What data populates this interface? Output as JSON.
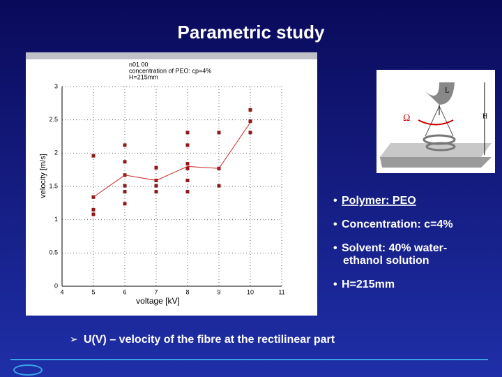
{
  "slide": {
    "title": "Parametric study",
    "bullets": [
      [
        "Polymer: PEO"
      ],
      [
        "Concentration: c=4%"
      ],
      [
        "Solvent: 40% water-",
        "ethanol solution"
      ],
      [
        "H=215mm"
      ]
    ],
    "footer": "U(V) – velocity of the fibre at the rectilinear part",
    "diagram": {
      "length_label": "L",
      "height_label": "H",
      "rotation_label": "Ω"
    }
  },
  "chart_data": {
    "type": "scatter",
    "annotation": [
      "n01 00",
      "concentration of PEO: cp=4%",
      "H=215mm"
    ],
    "x_label": "voltage [kV]",
    "y_label": "velocity [m/s]",
    "xlim": [
      4,
      11
    ],
    "xticks": [
      4,
      5,
      6,
      7,
      8,
      9,
      10,
      11
    ],
    "ylim": [
      0,
      3
    ],
    "yticks": [
      0,
      0.5,
      1,
      1.5,
      2,
      2.5,
      3
    ],
    "grid": true,
    "series": [
      {
        "style": "markers",
        "color": "#8b1a1a",
        "x": [
          5,
          5,
          5,
          5,
          6,
          6,
          6,
          6,
          6,
          6,
          7,
          7,
          7,
          7,
          8,
          8,
          8,
          8,
          8,
          8,
          9,
          9,
          9,
          10,
          10,
          10
        ],
        "values": [
          1.96,
          1.34,
          1.15,
          1.08,
          2.12,
          1.87,
          1.67,
          1.51,
          1.42,
          1.24,
          1.78,
          1.59,
          1.51,
          1.42,
          2.31,
          2.12,
          1.84,
          1.77,
          1.59,
          1.42,
          2.31,
          1.77,
          1.51,
          2.65,
          2.48,
          2.31
        ]
      },
      {
        "style": "line",
        "color": "#cc2222",
        "x": [
          5,
          6,
          7,
          8,
          9,
          10
        ],
        "values": [
          1.34,
          1.67,
          1.59,
          1.8,
          1.77,
          2.46
        ]
      }
    ]
  }
}
